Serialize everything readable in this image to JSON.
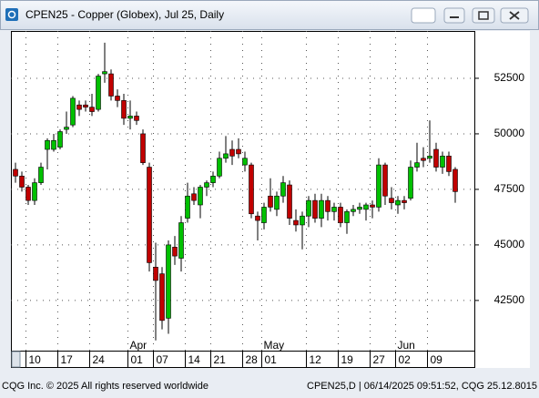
{
  "window_title": "CPEN25 - Copper (Globex), Jul 25, Daily",
  "footer_left": "CQG Inc. © 2025 All rights reserved worldwide",
  "footer_right": "CPEN25,D | 06/14/2025 09:51:52, CQG 25.12.8015",
  "chart_data": {
    "type": "candlestick",
    "categories": [
      null,
      null,
      "10",
      null,
      null,
      null,
      null,
      "17",
      null,
      null,
      null,
      null,
      "24",
      null,
      null,
      null,
      null,
      null,
      "01",
      null,
      null,
      null,
      "07",
      null,
      null,
      null,
      null,
      "14",
      null,
      null,
      null,
      "21",
      null,
      null,
      null,
      null,
      "28",
      null,
      null,
      "01",
      null,
      null,
      null,
      null,
      null,
      null,
      "12",
      null,
      null,
      null,
      null,
      "19",
      null,
      null,
      null,
      null,
      "27",
      null,
      null,
      null,
      "02",
      null,
      null,
      null,
      null,
      "09",
      null,
      null,
      null,
      null
    ],
    "month_labels": [
      null,
      null,
      null,
      null,
      null,
      null,
      null,
      null,
      null,
      null,
      null,
      null,
      null,
      null,
      null,
      null,
      null,
      null,
      "Apr",
      null,
      null,
      null,
      null,
      null,
      null,
      null,
      null,
      null,
      null,
      null,
      null,
      null,
      null,
      null,
      null,
      null,
      null,
      null,
      null,
      "May",
      null,
      null,
      null,
      null,
      null,
      null,
      null,
      null,
      null,
      null,
      null,
      null,
      null,
      null,
      null,
      null,
      null,
      null,
      null,
      null,
      "Jun",
      null,
      null,
      null,
      null,
      null,
      null,
      null,
      null,
      null
    ],
    "open": [
      48400,
      48100,
      47600,
      47000,
      47800,
      49300,
      49300,
      49400,
      50200,
      50400,
      51300,
      51300,
      51200,
      51100,
      52700,
      52700,
      51700,
      51500,
      50700,
      50800,
      50000,
      48500,
      44000,
      43700,
      41700,
      44900,
      44400,
      46200,
      47300,
      46800,
      47600,
      47800,
      48100,
      48900,
      49300,
      49300,
      48600,
      48600,
      46300,
      46000,
      47200,
      46600,
      47200,
      47700,
      46100,
      45900,
      46300,
      47000,
      46200,
      47000,
      46500,
      46700,
      46000,
      46500,
      46600,
      46600,
      46800,
      46700,
      48600,
      47100,
      46800,
      47000,
      47100,
      48500,
      48900,
      48900,
      49300,
      48500,
      49000,
      48400
    ],
    "high": [
      48700,
      48300,
      47700,
      48000,
      48700,
      49800,
      50000,
      50200,
      51000,
      51700,
      51500,
      51500,
      51800,
      52700,
      54100,
      52900,
      52000,
      51800,
      51500,
      51000,
      50200,
      48700,
      45100,
      44000,
      45200,
      45400,
      46300,
      47800,
      47600,
      47700,
      47900,
      48300,
      49200,
      49900,
      49700,
      49800,
      49200,
      48700,
      46500,
      46900,
      48000,
      47400,
      48100,
      47900,
      46600,
      46500,
      47200,
      47300,
      47300,
      47200,
      46900,
      46900,
      46600,
      46800,
      46900,
      46900,
      47000,
      48900,
      48700,
      47600,
      47200,
      47200,
      48800,
      49600,
      49400,
      50600,
      49600,
      49200,
      49200,
      48500
    ],
    "low": [
      47800,
      47400,
      46800,
      46800,
      47700,
      48400,
      49200,
      49300,
      50000,
      50300,
      50800,
      51000,
      50800,
      51000,
      52300,
      51500,
      51200,
      50400,
      50200,
      50400,
      48600,
      43800,
      40700,
      41200,
      41000,
      44100,
      43800,
      46000,
      46800,
      46200,
      47200,
      47600,
      48000,
      48700,
      48600,
      48900,
      48300,
      46200,
      45200,
      45700,
      46500,
      46300,
      46900,
      45900,
      45600,
      44800,
      45800,
      46000,
      45800,
      46100,
      46100,
      45800,
      45500,
      46300,
      46400,
      46100,
      46200,
      46500,
      46800,
      46600,
      46400,
      46600,
      47000,
      48300,
      48500,
      48700,
      48300,
      48200,
      48100,
      46900
    ],
    "close": [
      48100,
      47600,
      47000,
      47800,
      48500,
      49700,
      49700,
      50100,
      50300,
      51600,
      51100,
      51200,
      51000,
      52600,
      52800,
      51700,
      51500,
      50700,
      50800,
      50600,
      48700,
      44200,
      43400,
      41600,
      45000,
      44500,
      46000,
      47200,
      47000,
      47600,
      47800,
      48100,
      48900,
      49100,
      49000,
      49100,
      48900,
      46400,
      46100,
      46700,
      46700,
      47200,
      47800,
      46200,
      45900,
      46300,
      47000,
      46200,
      47000,
      46500,
      46700,
      46000,
      46500,
      46600,
      46700,
      46800,
      46700,
      48600,
      47200,
      46900,
      47000,
      46900,
      48500,
      48700,
      48800,
      49000,
      48500,
      49000,
      48300,
      47400
    ],
    "up_color": "#00c000",
    "down_color": "#c00000",
    "ylim": [
      40200,
      54630
    ],
    "yticks": [
      42500,
      45000,
      47500,
      50000,
      52500
    ],
    "grid": true
  }
}
